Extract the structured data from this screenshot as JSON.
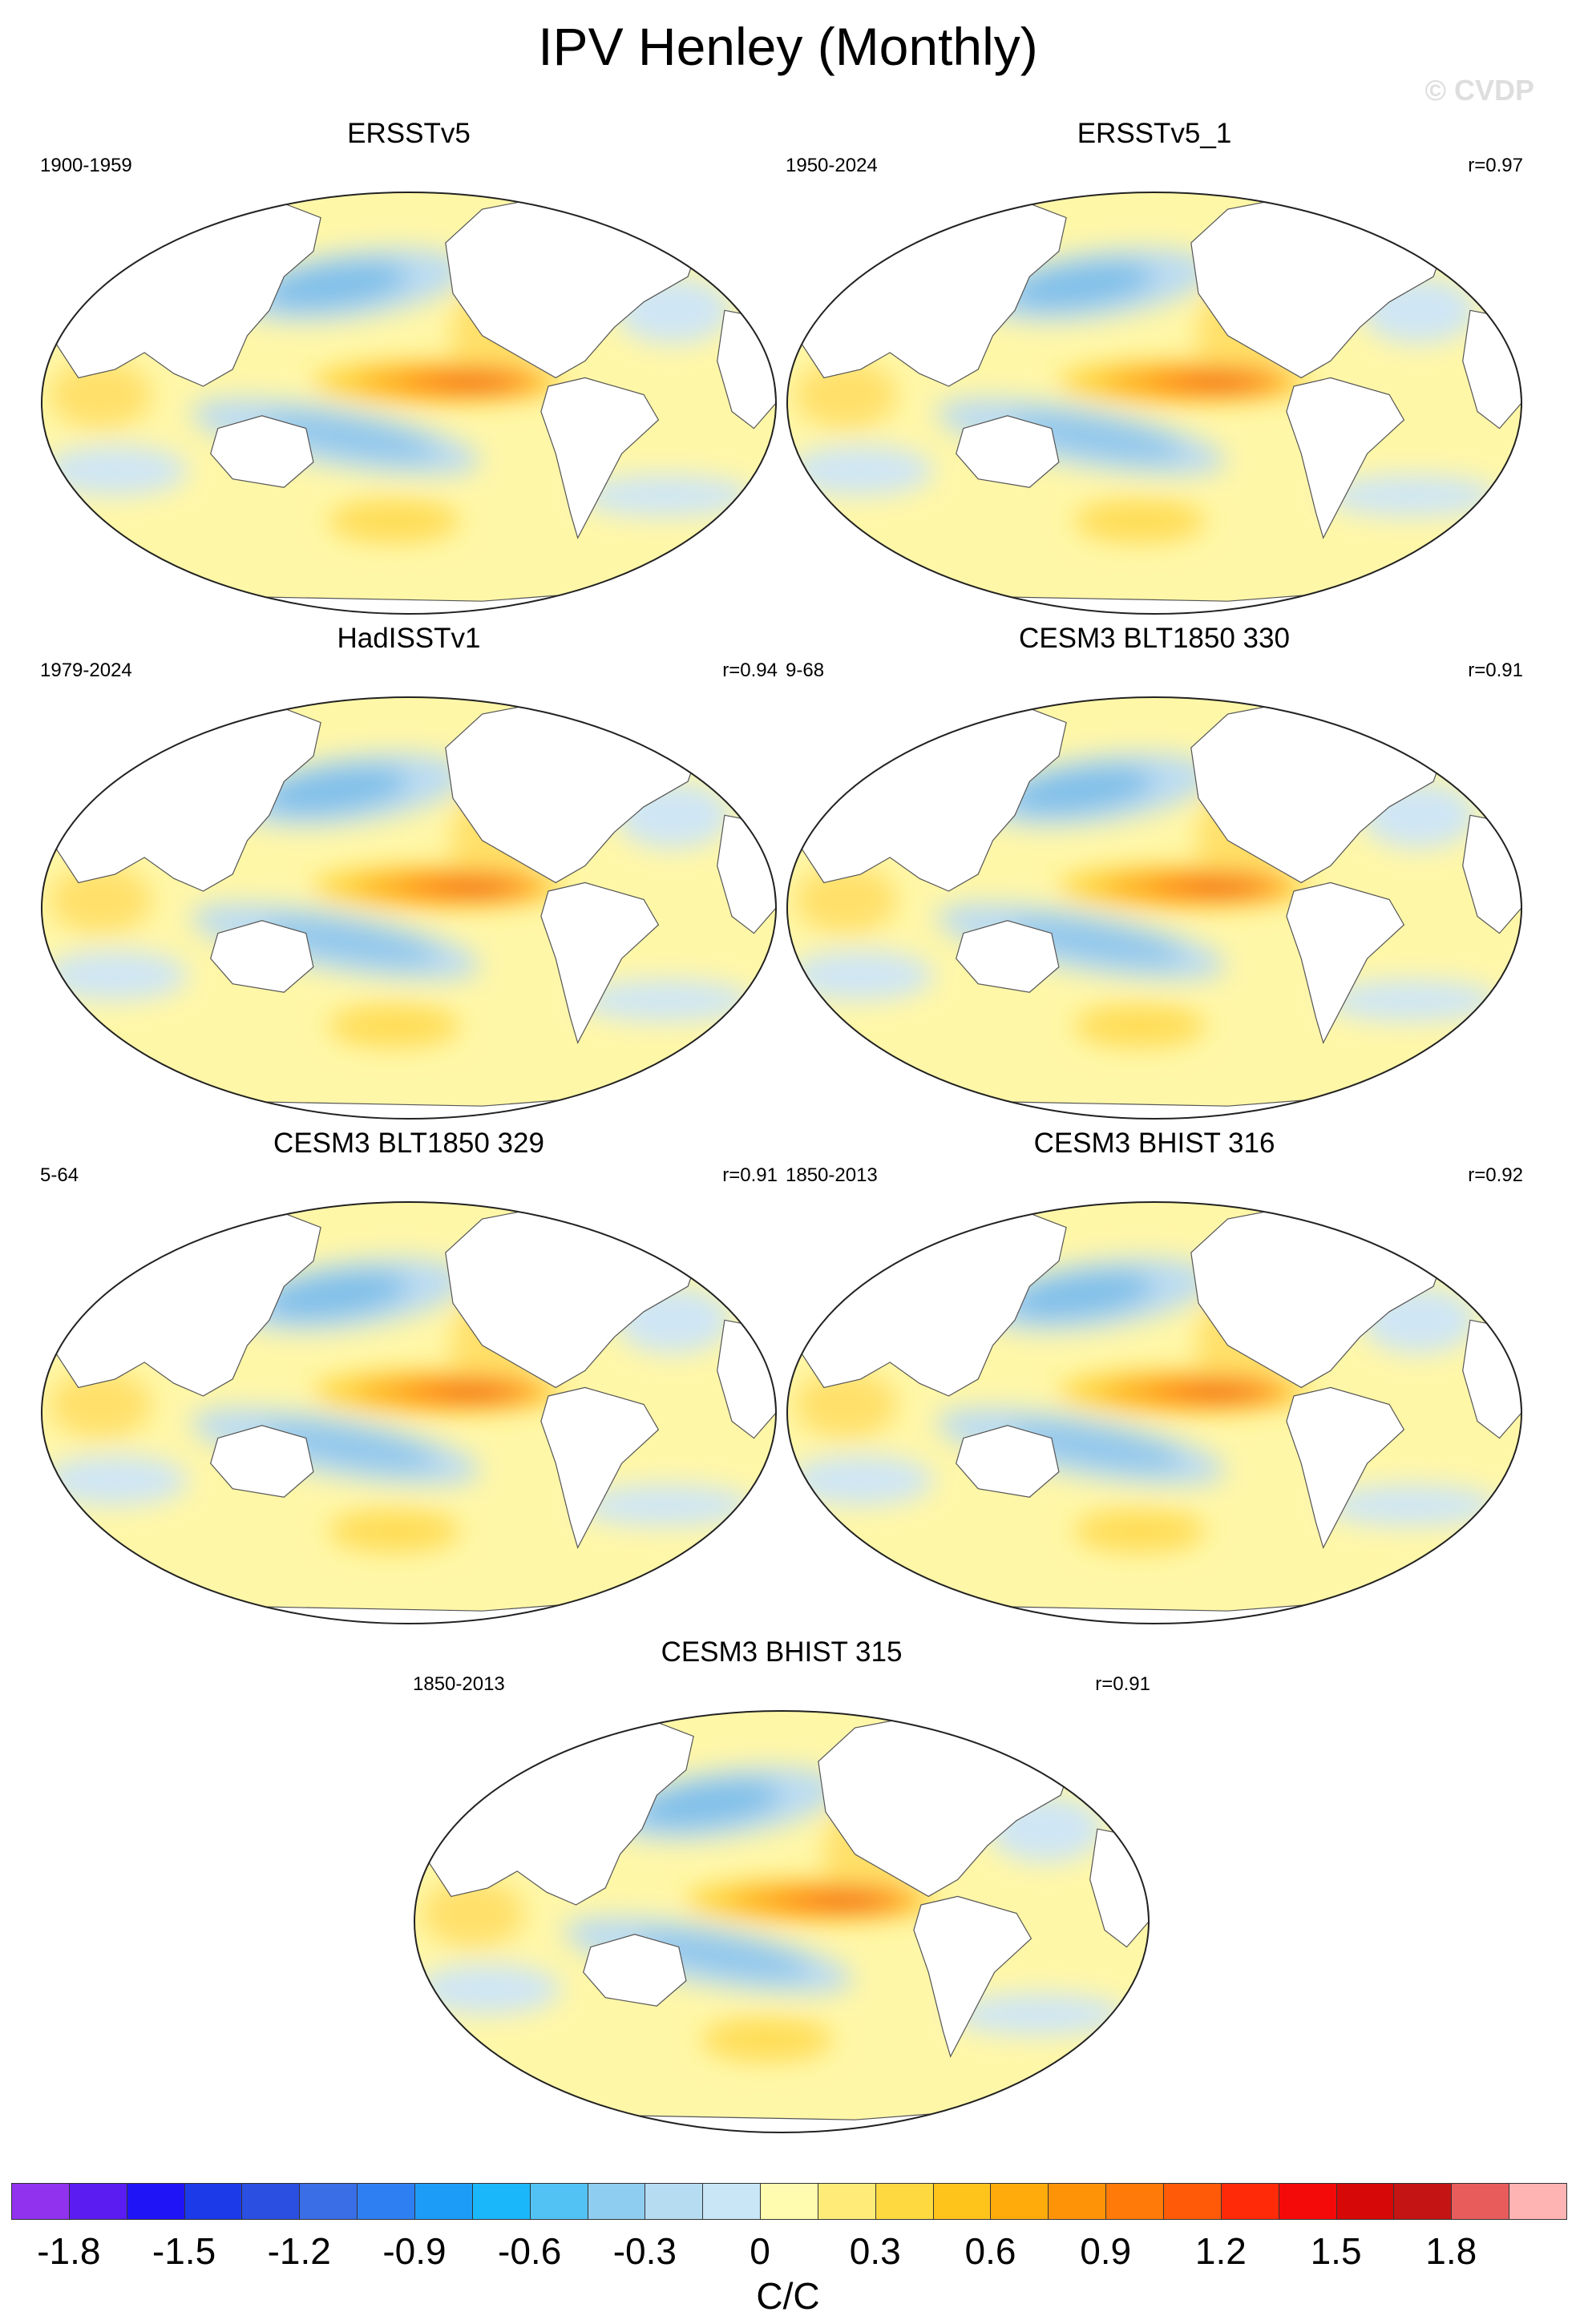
{
  "title": "IPV Henley (Monthly)",
  "copyright": "© CVDP",
  "panels": [
    {
      "title": "ERSSTv5",
      "period": "1900-1959",
      "corr": ""
    },
    {
      "title": "ERSSTv5_1",
      "period": "1950-2024",
      "corr": "r=0.97"
    },
    {
      "title": "HadISSTv1",
      "period": "1979-2024",
      "corr": "r=0.94"
    },
    {
      "title": "CESM3 BLT1850 330",
      "period": "9-68",
      "corr": "r=0.91"
    },
    {
      "title": "CESM3 BLT1850 329",
      "period": "5-64",
      "corr": "r=0.91"
    },
    {
      "title": "CESM3 BHIST 316",
      "period": "1850-2013",
      "corr": "r=0.92"
    },
    {
      "title": "CESM3 BHIST 315",
      "period": "1850-2013",
      "corr": "r=0.91"
    }
  ],
  "colorbar": {
    "units": "C/C",
    "labels": [
      "-1.8",
      "-1.5",
      "-1.2",
      "-0.9",
      "-0.6",
      "-0.3",
      "0",
      "0.3",
      "0.6",
      "0.9",
      "1.2",
      "1.5",
      "1.8"
    ],
    "colors": [
      "#9132ee",
      "#5a1cf0",
      "#1e14f5",
      "#1c3ae8",
      "#2b4fe0",
      "#3a6ee6",
      "#2e7ff2",
      "#1d9cf7",
      "#1ab8fa",
      "#52c2f5",
      "#8ecdf0",
      "#b6dcf2",
      "#c8e6f5",
      "#fffcb0",
      "#ffec78",
      "#ffd940",
      "#ffc41c",
      "#ffab0b",
      "#ff9308",
      "#ff7a08",
      "#ff5a08",
      "#ff2a08",
      "#f50a0a",
      "#d60808",
      "#c41414",
      "#e85c5c",
      "#ffb4b4"
    ]
  }
}
